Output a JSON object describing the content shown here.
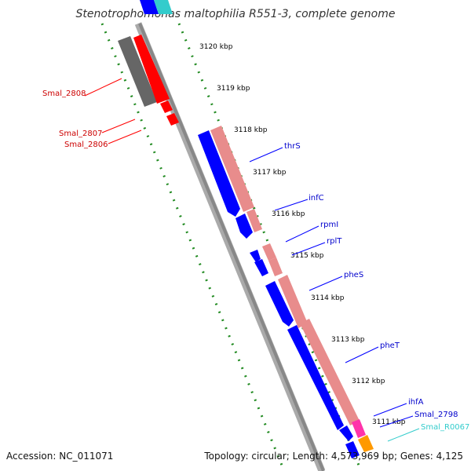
{
  "title": "Stenotrophomonas maltophilia R551-3, complete genome",
  "footer": {
    "accession": "Accession: NC_011071",
    "summary": "Topology: circular; Length: 4,573,969 bp; Genes: 4,125"
  },
  "colors": {
    "forward_cds": "#ff0000",
    "forward_cds_dark": "#666666",
    "reverse_cds": "#0000ff",
    "gene_light": "#e88c8c",
    "gene_pink": "#ff33aa",
    "gene_orange": "#ff9900",
    "cyan_gene": "#33cccc",
    "tick_green": "#228b22",
    "backbone": "#888888"
  },
  "scale_labels": [
    {
      "id": "kbp-3120",
      "text": "3120 kbp"
    },
    {
      "id": "kbp-3119",
      "text": "3119 kbp"
    },
    {
      "id": "kbp-3118",
      "text": "3118 kbp"
    },
    {
      "id": "kbp-3117",
      "text": "3117 kbp"
    },
    {
      "id": "kbp-3116",
      "text": "3116 kbp"
    },
    {
      "id": "kbp-3115",
      "text": "3115 kbp"
    },
    {
      "id": "kbp-3114",
      "text": "3114 kbp"
    },
    {
      "id": "kbp-3113",
      "text": "3113 kbp"
    },
    {
      "id": "kbp-3112",
      "text": "3112 kbp"
    },
    {
      "id": "kbp-3111",
      "text": "3111 kbp"
    }
  ],
  "gene_labels_left": [
    {
      "id": "smal-2808",
      "text": "Smal_2808"
    },
    {
      "id": "smal-2807",
      "text": "Smal_2807"
    },
    {
      "id": "smal-2806",
      "text": "Smal_2806"
    }
  ],
  "gene_labels_right": [
    {
      "id": "thrs",
      "text": "thrS"
    },
    {
      "id": "infc",
      "text": "infC"
    },
    {
      "id": "rpmi",
      "text": "rpmI"
    },
    {
      "id": "rplt",
      "text": "rplT"
    },
    {
      "id": "phes",
      "text": "pheS"
    },
    {
      "id": "phet",
      "text": "pheT"
    },
    {
      "id": "ihfa",
      "text": "ihfA"
    },
    {
      "id": "smal-2798",
      "text": "Smal_2798"
    },
    {
      "id": "smal-r0067",
      "text": "Smal_R0067"
    }
  ]
}
